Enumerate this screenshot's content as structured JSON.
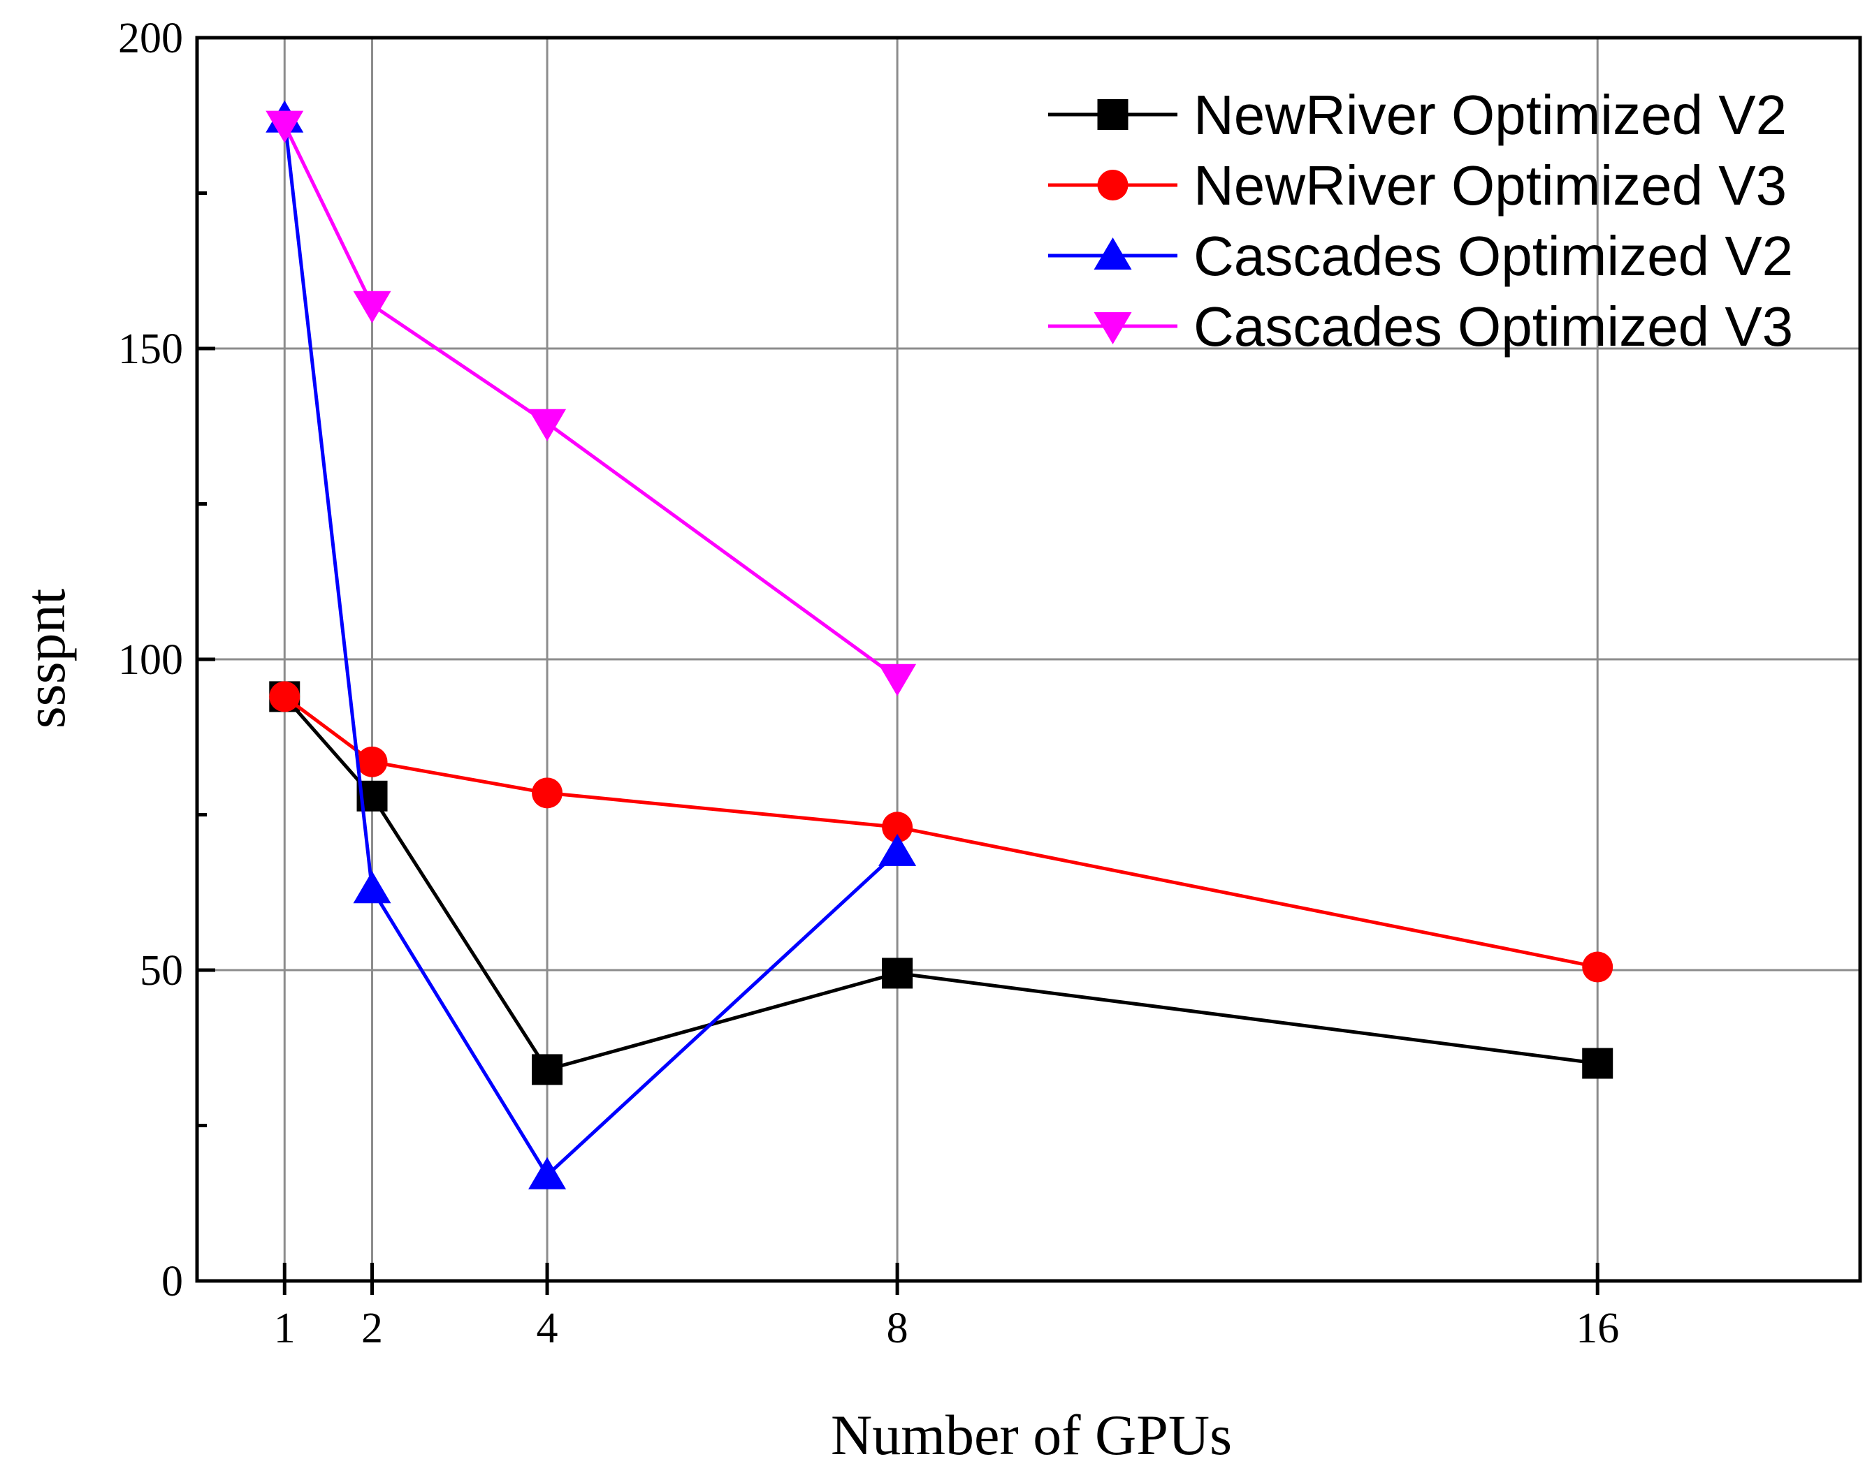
{
  "chart_data": {
    "type": "line",
    "title": "",
    "xlabel": "Number of GPUs",
    "ylabel": "ssspnt",
    "x": [
      1,
      2,
      4,
      8,
      16
    ],
    "xticks": [
      "1",
      "2",
      "4",
      "8",
      "16"
    ],
    "xlim": [
      0,
      19
    ],
    "ylim": [
      0,
      200
    ],
    "yticks": [
      "0",
      "50",
      "100",
      "150",
      "200"
    ],
    "grid": true,
    "legend_position": "top-right",
    "series": [
      {
        "name": "NewRiver Optimized V2",
        "color": "#000000",
        "marker": "square",
        "x": [
          1,
          2,
          4,
          8,
          16
        ],
        "values": [
          94,
          78,
          34,
          49.5,
          35
        ]
      },
      {
        "name": "NewRiver Optimized V3",
        "color": "#ff0000",
        "marker": "circle",
        "x": [
          1,
          2,
          4,
          8,
          16
        ],
        "values": [
          94,
          83.5,
          78.5,
          73,
          50.5
        ]
      },
      {
        "name": "Cascades Optimized V2",
        "color": "#0000ff",
        "marker": "triangle-up",
        "x": [
          1,
          2,
          4,
          8
        ],
        "values": [
          187,
          63,
          17,
          69
        ]
      },
      {
        "name": "Cascades Optimized V3",
        "color": "#ff00ff",
        "marker": "triangle-down",
        "x": [
          1,
          2,
          4,
          8
        ],
        "values": [
          186,
          157,
          138,
          97
        ]
      }
    ]
  }
}
